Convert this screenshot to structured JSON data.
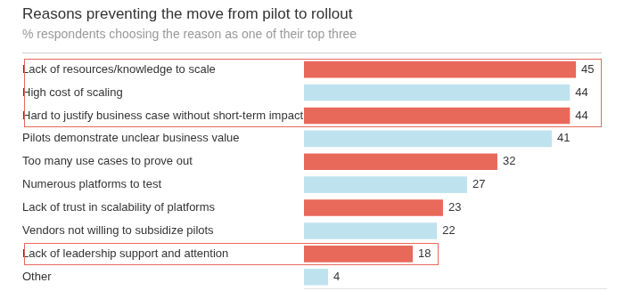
{
  "chart_data": {
    "type": "bar",
    "orientation": "horizontal",
    "title": "Reasons preventing the move from pilot to rollout",
    "subtitle": "% respondents choosing the reason as one of their top three",
    "categories": [
      "Lack of resources/knowledge to scale",
      "High cost of scaling",
      "Hard to justify business case without short-term impact",
      "Pilots demonstrate unclear business value",
      "Too many use cases to prove out",
      "Numerous platforms to test",
      "Lack of trust in scalability of platforms",
      "Vendors not willing to subsidize pilots",
      "Lack of leadership support and attention",
      "Other"
    ],
    "values": [
      45,
      44,
      44,
      41,
      32,
      27,
      23,
      22,
      18,
      4
    ],
    "colors": [
      "#e8685a",
      "#bfe3ee",
      "#e8685a",
      "#bfe3ee",
      "#e8685a",
      "#bfe3ee",
      "#e8685a",
      "#bfe3ee",
      "#e8685a",
      "#bfe3ee"
    ],
    "xlim": [
      0,
      50
    ],
    "grid": false,
    "data_labels": true,
    "tick_labels": "y",
    "highlights": [
      {
        "from": "Lack of resources/knowledge to scale",
        "to": "Hard to justify business case without short-term impact"
      },
      {
        "from": "Lack of leadership support and attention",
        "to": "Lack of leadership support and attention"
      }
    ]
  }
}
